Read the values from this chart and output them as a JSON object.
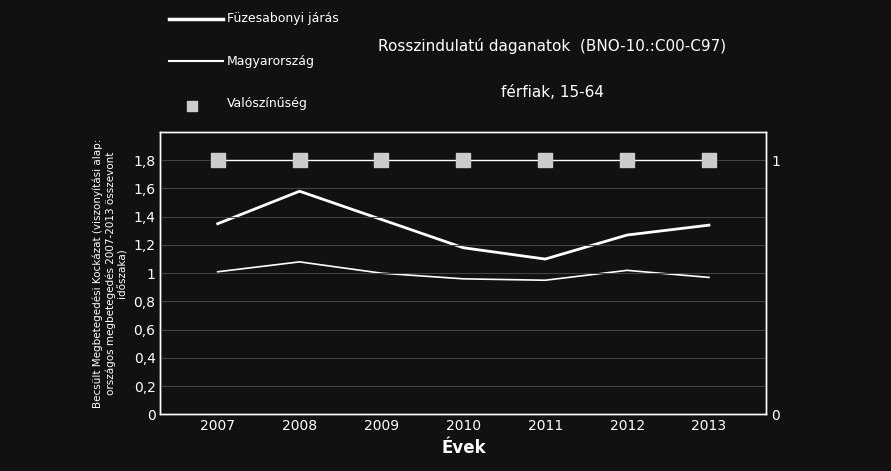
{
  "title_line1": "Rosszindulatú daganatok  (BNO-10.:C00-C97)",
  "title_line2": "férfiak, 15-64",
  "xlabel": "Évek",
  "ylabel_left": "Becsült Megbetegedési Kockázat (viszonyítási alap:\nországos megbetegedés 2007-2013 összevont\nidőszaka)",
  "years": [
    2007,
    2008,
    2009,
    2010,
    2011,
    2012,
    2013
  ],
  "fuzesabonyi": [
    1.35,
    1.58,
    1.38,
    1.18,
    1.1,
    1.27,
    1.34
  ],
  "magyarorszag": [
    1.01,
    1.08,
    1.0,
    0.96,
    0.95,
    1.02,
    0.97
  ],
  "valoszinuseg_left": [
    1.8,
    1.8,
    1.8,
    1.8,
    1.8,
    1.8,
    1.8
  ],
  "valoszinuseg_right": [
    1.0,
    1.0,
    1.0,
    1.0,
    1.0,
    1.0,
    1.0
  ],
  "ylim_left": [
    0,
    2.0
  ],
  "ylim_right": [
    0,
    1.111
  ],
  "yticks_left": [
    0,
    0.2,
    0.4,
    0.6,
    0.8,
    1.0,
    1.2,
    1.4,
    1.6,
    1.8
  ],
  "yticks_left_labels": [
    "0",
    "0,2",
    "0,4",
    "0,6",
    "0,8",
    "1",
    "1,2",
    "1,4",
    "1,6",
    "1,8"
  ],
  "yticks_right": [
    0,
    1
  ],
  "yticks_right_labels": [
    "0",
    "1"
  ],
  "background_color": "#111111",
  "text_color": "#ffffff",
  "line_color_fuzesabonyi": "#ffffff",
  "line_color_magyarorszag": "#ffffff",
  "marker_color_valoszinuseg": "#cccccc",
  "grid_color": "#444444",
  "legend_fuzesabonyi": "Füzesabonyi járás",
  "legend_magyarorszag": "Magyarország",
  "legend_valoszinuseg": "Valószínűség"
}
